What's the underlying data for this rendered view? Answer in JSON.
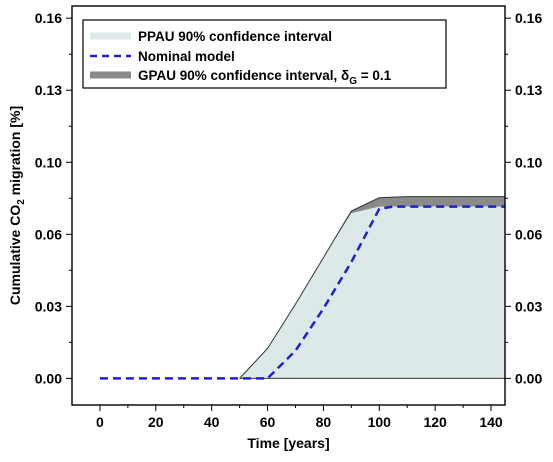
{
  "chart_data": {
    "type": "area",
    "xlabel": "Time [years]",
    "ylabel": {
      "prefix": "Cumulative CO",
      "sub": "2",
      "suffix": " migration [%]"
    },
    "xlim": [
      -10,
      145
    ],
    "ylim": [
      -0.012,
      0.168
    ],
    "xticks": [
      0,
      20,
      40,
      60,
      80,
      100,
      120,
      140
    ],
    "yticks": [
      {
        "value": 0.0,
        "label": "0.00"
      },
      {
        "value": 0.0325,
        "label": "0.03"
      },
      {
        "value": 0.065,
        "label": "0.06"
      },
      {
        "value": 0.0975,
        "label": "0.10"
      },
      {
        "value": 0.13,
        "label": "0.13"
      },
      {
        "value": 0.1625,
        "label": "0.16"
      }
    ],
    "grid": false,
    "legend_position": "top-left",
    "series": [
      {
        "name": "GPAU 90% confidence interval, δG = 0.1",
        "legend": {
          "main": "GPAU 90% confidence interval, δ",
          "sub": "G",
          "tail": " = 0.1"
        },
        "kind": "band",
        "color": "#8a8a8a",
        "upper": {
          "x": [
            50,
            60,
            70,
            80,
            90,
            100,
            110,
            120,
            130,
            145
          ],
          "y": [
            0.0,
            0.0135,
            0.0335,
            0.0545,
            0.0755,
            0.0815,
            0.082,
            0.082,
            0.082,
            0.082
          ]
        },
        "lower": {
          "x": [
            50,
            60,
            70,
            80,
            90,
            100,
            110,
            120,
            130,
            145
          ],
          "y": [
            0.0,
            0.0135,
            0.0335,
            0.0545,
            0.0745,
            0.0775,
            0.0775,
            0.0775,
            0.0775,
            0.0775
          ]
        }
      },
      {
        "name": "PPAU 90% confidence interval",
        "kind": "band",
        "color": "#dde9e8",
        "upper": {
          "x": [
            50,
            60,
            70,
            80,
            90,
            100,
            110,
            120,
            130,
            145
          ],
          "y": [
            0.0,
            0.0135,
            0.0335,
            0.0545,
            0.0745,
            0.0775,
            0.0775,
            0.0775,
            0.0775,
            0.0775
          ]
        },
        "lower": {
          "x": [
            50,
            145
          ],
          "y": [
            0.0,
            0.0
          ]
        }
      },
      {
        "name": "Nominal model",
        "kind": "line",
        "color": "#1f1fd6",
        "dash": true,
        "x": [
          0,
          60,
          70,
          80,
          90,
          100,
          105,
          110,
          120,
          130,
          140,
          145
        ],
        "y": [
          0.0,
          0.0,
          0.0125,
          0.0315,
          0.0525,
          0.0765,
          0.0775,
          0.0775,
          0.0775,
          0.0775,
          0.0775,
          0.0775
        ]
      }
    ]
  }
}
